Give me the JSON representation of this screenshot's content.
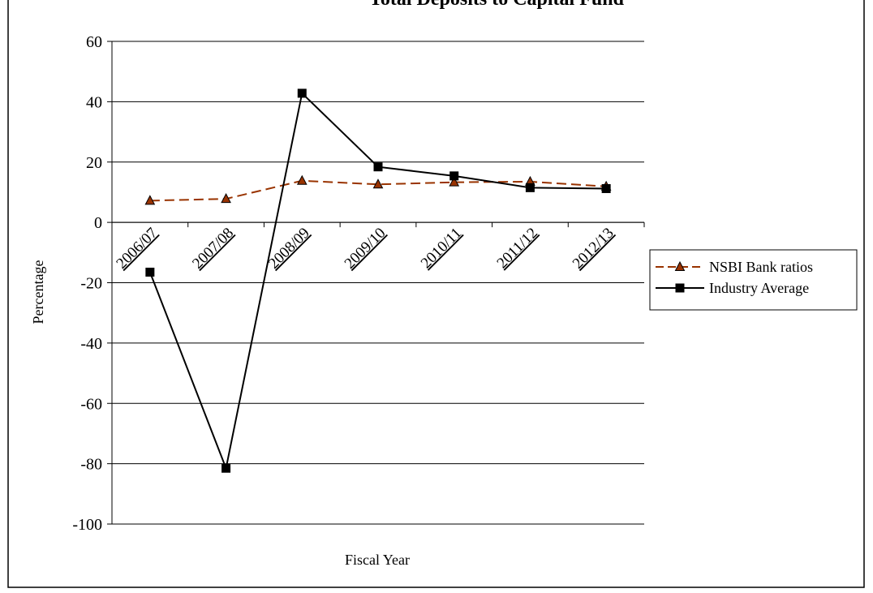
{
  "chart_data": {
    "type": "line",
    "title": "Total Deposits to Capital Fund",
    "xlabel": "Fiscal Year",
    "ylabel": "Percentage",
    "categories": [
      "2006/07",
      "2007/08",
      "2008/09",
      "2009/10",
      "2010/11",
      "2011/12",
      "2012/13"
    ],
    "ylim": [
      -100,
      60
    ],
    "yticks": [
      60,
      40,
      20,
      0,
      -20,
      -40,
      -60,
      -80,
      -100
    ],
    "grid": true,
    "legend_position": "right",
    "series": [
      {
        "name": "NSBI Bank ratios",
        "values": [
          7.2,
          7.8,
          13.8,
          12.6,
          13.3,
          13.5,
          11.9
        ],
        "color": "#993300",
        "line_style": "dashed",
        "marker": "triangle"
      },
      {
        "name": "Industry Average",
        "values": [
          -16.5,
          -81.5,
          42.8,
          18.4,
          15.4,
          11.5,
          11.2
        ],
        "color": "#000000",
        "line_style": "solid",
        "marker": "square"
      }
    ]
  }
}
